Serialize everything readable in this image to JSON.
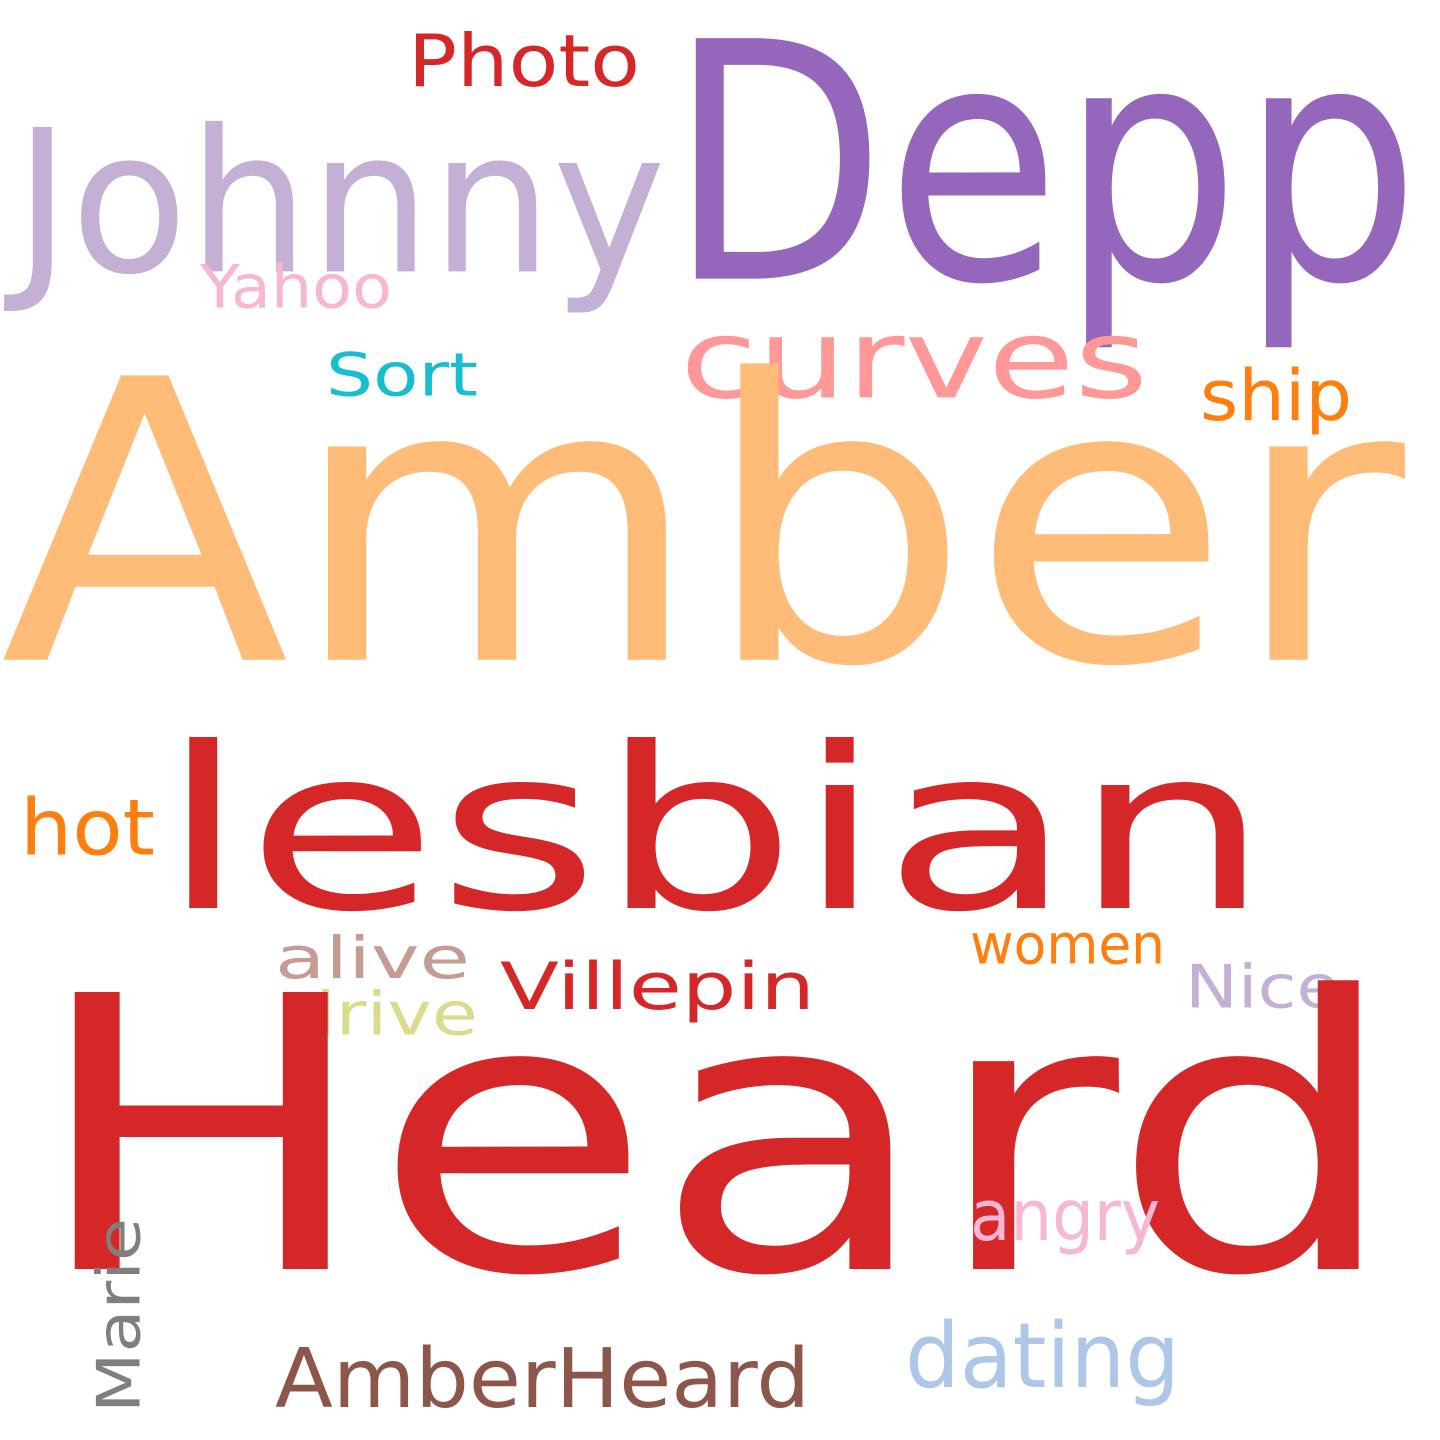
{
  "words": [
    {
      "text": "Depp",
      "color": "#9467bd"
    },
    {
      "text": "Photo",
      "color": "#d62728"
    },
    {
      "text": "Johnny",
      "color": "#c5b0d5"
    },
    {
      "text": "Yahoo",
      "color": "#f7b6d2"
    },
    {
      "text": "curves",
      "color": "#ff9896"
    },
    {
      "text": "Sort",
      "color": "#17becf"
    },
    {
      "text": "ship",
      "color": "#ff7f0e"
    },
    {
      "text": "Amber",
      "color": "#ffbb78"
    },
    {
      "text": "lesbian",
      "color": "#d62728"
    },
    {
      "text": "hot",
      "color": "#ff7f0e"
    },
    {
      "text": "alive",
      "color": "#c49c94"
    },
    {
      "text": "drive",
      "color": "#dbdb8d"
    },
    {
      "text": "Villepin",
      "color": "#d62728"
    },
    {
      "text": "women",
      "color": "#ff7f0e"
    },
    {
      "text": "Nice",
      "color": "#c5b0d5"
    },
    {
      "text": "Heard",
      "color": "#d62728"
    },
    {
      "text": "angry",
      "color": "#f7b6d2"
    },
    {
      "text": "Marie",
      "color": "#7f7f7f"
    },
    {
      "text": "AmberHeard",
      "color": "#8c564b"
    },
    {
      "text": "dating",
      "color": "#aec7e8"
    }
  ]
}
